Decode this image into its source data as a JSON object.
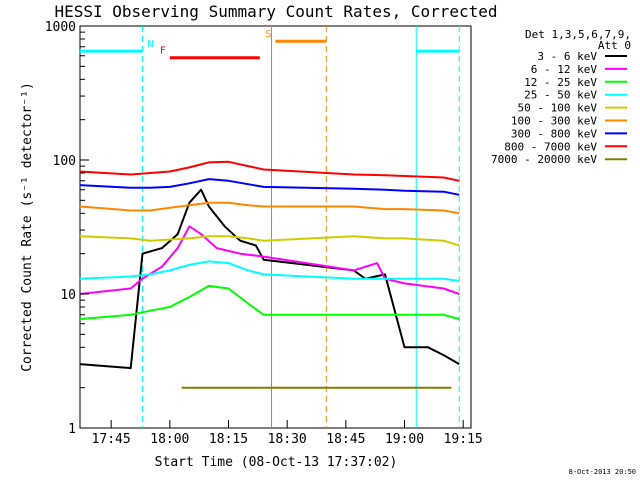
{
  "chart_data": {
    "type": "line",
    "title": "HESSI Observing Summary Count Rates, Corrected",
    "xlabel": "Start Time (08-Oct-13 17:37:02)",
    "ylabel": "Corrected Count Rate (s⁻¹ detector⁻¹)",
    "yscale": "log",
    "ylim": [
      1,
      1000
    ],
    "xlim": [
      "17:37:02",
      "19:17:00"
    ],
    "xticks": [
      "17:45",
      "18:00",
      "18:15",
      "18:30",
      "18:45",
      "19:00",
      "19:15"
    ],
    "yticks": [
      "1",
      "10",
      "100",
      "1000"
    ],
    "grid": false,
    "legend_title": [
      "Det 1,3,5,6,7,9,",
      "Att 0"
    ],
    "legend_position": "right",
    "footer": "8-Oct-2013 20:50",
    "series": [
      {
        "name": "3 - 6 keV",
        "color": "#000000",
        "x": [
          "17:37",
          "17:50",
          "17:53",
          "17:58",
          "18:02",
          "18:05",
          "18:08",
          "18:10",
          "18:14",
          "18:18",
          "18:22",
          "18:24",
          "18:47",
          "18:50",
          "18:55",
          "19:00",
          "19:06",
          "19:10",
          "19:14"
        ],
        "y": [
          3.0,
          2.8,
          20,
          22,
          28,
          48,
          60,
          45,
          32,
          25,
          23,
          18,
          15,
          13,
          14,
          4,
          4,
          3.5,
          3
        ]
      },
      {
        "name": "6 - 12 keV",
        "color": "#ff00ff",
        "x": [
          "17:37",
          "17:50",
          "17:53",
          "17:58",
          "18:02",
          "18:05",
          "18:08",
          "18:12",
          "18:18",
          "18:24",
          "18:47",
          "18:53",
          "18:55",
          "19:00",
          "19:10",
          "19:14"
        ],
        "y": [
          10,
          11,
          13,
          16,
          22,
          32,
          28,
          22,
          20,
          19,
          15,
          17,
          13,
          12,
          11,
          10
        ]
      },
      {
        "name": "12 - 25 keV",
        "color": "#00ff00",
        "x": [
          "17:37",
          "17:50",
          "17:55",
          "18:00",
          "18:05",
          "18:10",
          "18:15",
          "18:20",
          "18:24",
          "18:47",
          "18:55",
          "19:00",
          "19:10",
          "19:14"
        ],
        "y": [
          6.5,
          7,
          7.5,
          8,
          9.5,
          11.5,
          11,
          8.5,
          7,
          7,
          7,
          7,
          7,
          6.5
        ]
      },
      {
        "name": "25 - 50 keV",
        "color": "#00ffff",
        "x": [
          "17:37",
          "17:50",
          "17:55",
          "18:00",
          "18:05",
          "18:10",
          "18:15",
          "18:20",
          "18:24",
          "18:47",
          "18:55",
          "19:00",
          "19:10",
          "19:14"
        ],
        "y": [
          13,
          13.5,
          14,
          15,
          16.5,
          17.5,
          17,
          15,
          14,
          13,
          13,
          13,
          13,
          12.5
        ]
      },
      {
        "name": "50 - 100 keV",
        "color": "#cccc00",
        "x": [
          "17:37",
          "17:50",
          "17:55",
          "18:00",
          "18:05",
          "18:10",
          "18:15",
          "18:20",
          "18:24",
          "18:47",
          "18:55",
          "19:00",
          "19:10",
          "19:14"
        ],
        "y": [
          27,
          26,
          25,
          25.5,
          26,
          27,
          27,
          26,
          25,
          27,
          26,
          26,
          25,
          23
        ]
      },
      {
        "name": "100 - 300 keV",
        "color": "#ff8800",
        "x": [
          "17:37",
          "17:50",
          "17:55",
          "18:00",
          "18:05",
          "18:10",
          "18:15",
          "18:20",
          "18:24",
          "18:47",
          "18:55",
          "19:00",
          "19:10",
          "19:14"
        ],
        "y": [
          45,
          42,
          42,
          44,
          46,
          48,
          48,
          46,
          45,
          45,
          43,
          43,
          42,
          40
        ]
      },
      {
        "name": "300 - 800 keV",
        "color": "#0000ff",
        "x": [
          "17:37",
          "17:50",
          "17:55",
          "18:00",
          "18:05",
          "18:10",
          "18:15",
          "18:20",
          "18:24",
          "18:47",
          "18:55",
          "19:00",
          "19:10",
          "19:14"
        ],
        "y": [
          65,
          62,
          62,
          63,
          67,
          72,
          70,
          66,
          63,
          61,
          60,
          59,
          58,
          55
        ]
      },
      {
        "name": "800 - 7000 keV",
        "color": "#ff0000",
        "x": [
          "17:37",
          "17:50",
          "17:55",
          "18:00",
          "18:05",
          "18:10",
          "18:15",
          "18:20",
          "18:24",
          "18:47",
          "18:55",
          "19:00",
          "19:10",
          "19:14"
        ],
        "y": [
          82,
          78,
          80,
          82,
          88,
          96,
          97,
          90,
          85,
          78,
          77,
          76,
          74,
          70
        ]
      },
      {
        "name": "7000 - 20000 keV",
        "color": "#808000",
        "x": [
          "18:03",
          "18:23",
          "19:04",
          "19:12"
        ],
        "y": [
          2.0,
          2.0,
          2.0,
          2.0
        ]
      }
    ],
    "flags": [
      {
        "label": "N",
        "color": "#00ffff",
        "y": 650,
        "segments": [
          [
            "17:37",
            "17:53"
          ],
          [
            "19:03",
            "19:14"
          ]
        ]
      },
      {
        "label": "F",
        "color": "#ff0000",
        "y": 580,
        "segments": [
          [
            "18:00",
            "18:23"
          ]
        ]
      },
      {
        "label": "S",
        "color": "#ff8800",
        "y": 770,
        "segments": [
          [
            "18:27",
            "18:40"
          ]
        ]
      }
    ],
    "vertical_markers": [
      {
        "time": "17:53",
        "color": "#00ffff",
        "style": "dashed"
      },
      {
        "time": "18:26",
        "color": "#cc8800",
        "style": "solid"
      },
      {
        "time": "18:40",
        "color": "#ff8800",
        "style": "dashed"
      },
      {
        "time": "19:03",
        "color": "#00ffff",
        "style": "solid"
      },
      {
        "time": "19:14",
        "color": "#00ffff",
        "style": "dashed"
      }
    ]
  }
}
